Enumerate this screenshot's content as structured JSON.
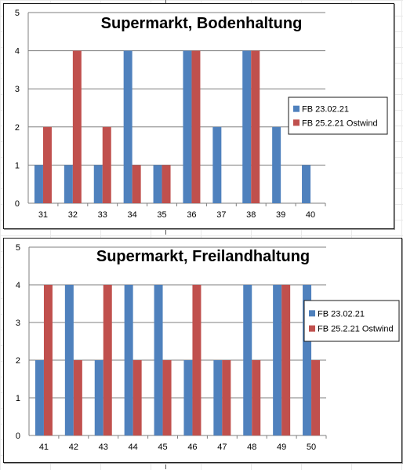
{
  "colors": {
    "series_a": "#4f81bd",
    "series_b": "#c0504d",
    "gridline": "#7f7f7f",
    "axis": "#7f7f7f"
  },
  "chart_data": [
    {
      "type": "bar",
      "title": "Supermarkt, Bodenhaltung",
      "categories": [
        "31",
        "32",
        "33",
        "34",
        "35",
        "36",
        "37",
        "38",
        "39",
        "40"
      ],
      "series": [
        {
          "name": "FB 23.02.21",
          "values": [
            1,
            1,
            1,
            4,
            1,
            4,
            2,
            4,
            2,
            1
          ]
        },
        {
          "name": "FB 25.2.21 Ostwind",
          "values": [
            2,
            4,
            2,
            1,
            1,
            4,
            0,
            4,
            0,
            0
          ]
        }
      ],
      "ylim": [
        0,
        5
      ],
      "yticks": [
        "0",
        "1",
        "2",
        "3",
        "4",
        "5"
      ],
      "grid": true,
      "legend_position": "right"
    },
    {
      "type": "bar",
      "title": "Supermarkt, Freilandhaltung",
      "categories": [
        "41",
        "42",
        "43",
        "44",
        "45",
        "46",
        "47",
        "48",
        "49",
        "50"
      ],
      "series": [
        {
          "name": "FB 23.02.21",
          "values": [
            2,
            4,
            2,
            4,
            4,
            2,
            2,
            4,
            4,
            4
          ]
        },
        {
          "name": "FB 25.2.21 Ostwind",
          "values": [
            4,
            2,
            4,
            2,
            2,
            4,
            2,
            2,
            4,
            2
          ]
        }
      ],
      "ylim": [
        0,
        5
      ],
      "yticks": [
        "0",
        "1",
        "2",
        "3",
        "4",
        "5"
      ],
      "grid": true,
      "legend_position": "right"
    }
  ]
}
